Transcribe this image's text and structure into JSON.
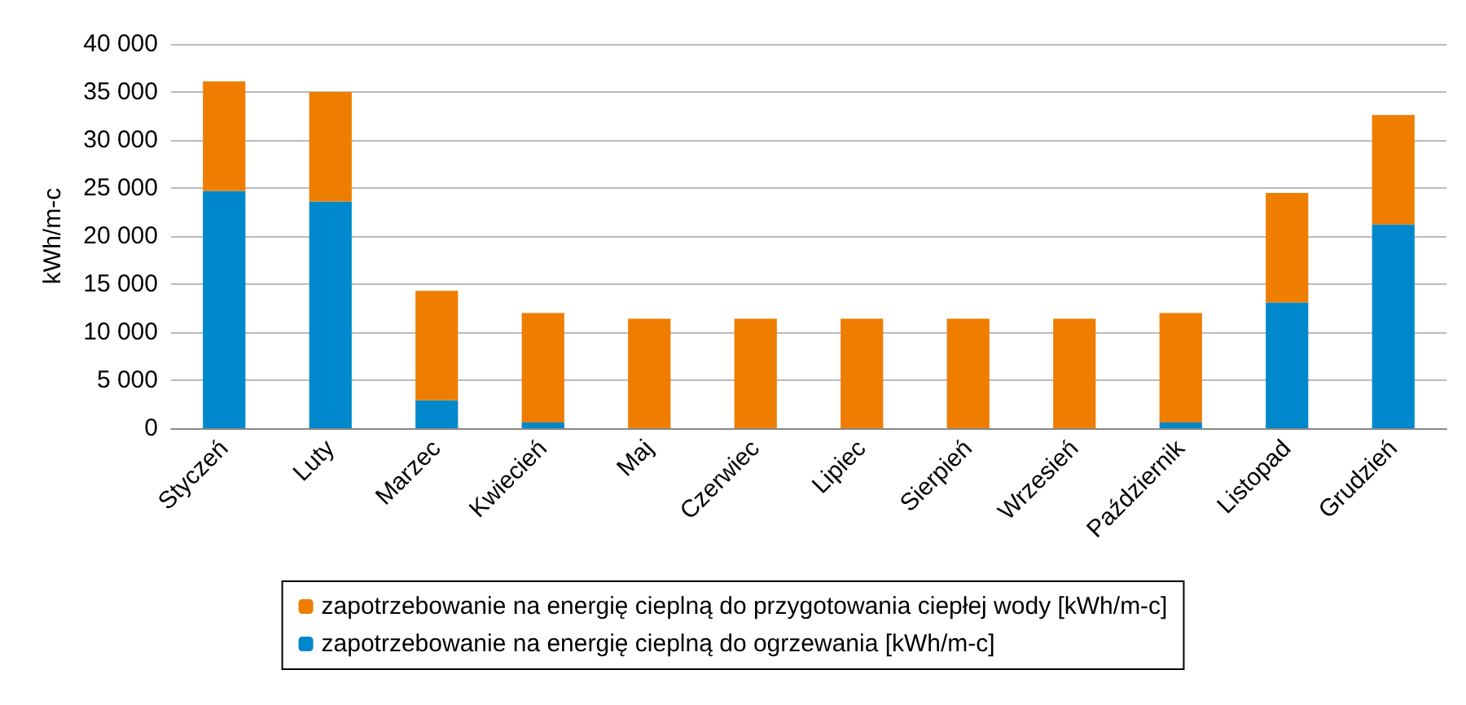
{
  "chart_data": {
    "type": "bar",
    "stacked": true,
    "ylabel": "kWh/m-c",
    "categories": [
      "Styczeń",
      "Luty",
      "Marzec",
      "Kwiecień",
      "Maj",
      "Czerwiec",
      "Lipiec",
      "Sierpień",
      "Wrzesień",
      "Październik",
      "Listopad",
      "Grudzień"
    ],
    "series": [
      {
        "name": "zapotrzebowanie na energię cieplną do ogrzewania [kWh/m-c]",
        "color": "#0088cc",
        "values": [
          24700,
          23600,
          2900,
          600,
          0,
          0,
          0,
          0,
          0,
          600,
          13100,
          21200
        ]
      },
      {
        "name": "zapotrzebowanie na energię cieplną do przygotowania ciepłej wody [kWh/m-c]",
        "color": "#ef7d00",
        "values": [
          11400,
          11400,
          11400,
          11400,
          11400,
          11400,
          11400,
          11400,
          11400,
          11400,
          11400,
          11400
        ]
      }
    ],
    "ylim": [
      0,
      40000
    ],
    "yticks": [
      {
        "value": 0,
        "label": "0"
      },
      {
        "value": 5000,
        "label": "5 000"
      },
      {
        "value": 10000,
        "label": "10 000"
      },
      {
        "value": 15000,
        "label": "15 000"
      },
      {
        "value": 20000,
        "label": "20 000"
      },
      {
        "value": 25000,
        "label": "25 000"
      },
      {
        "value": 30000,
        "label": "30 000"
      },
      {
        "value": 35000,
        "label": "35 000"
      },
      {
        "value": 40000,
        "label": "40 000"
      }
    ],
    "grid": "y",
    "legend": "bottom"
  }
}
